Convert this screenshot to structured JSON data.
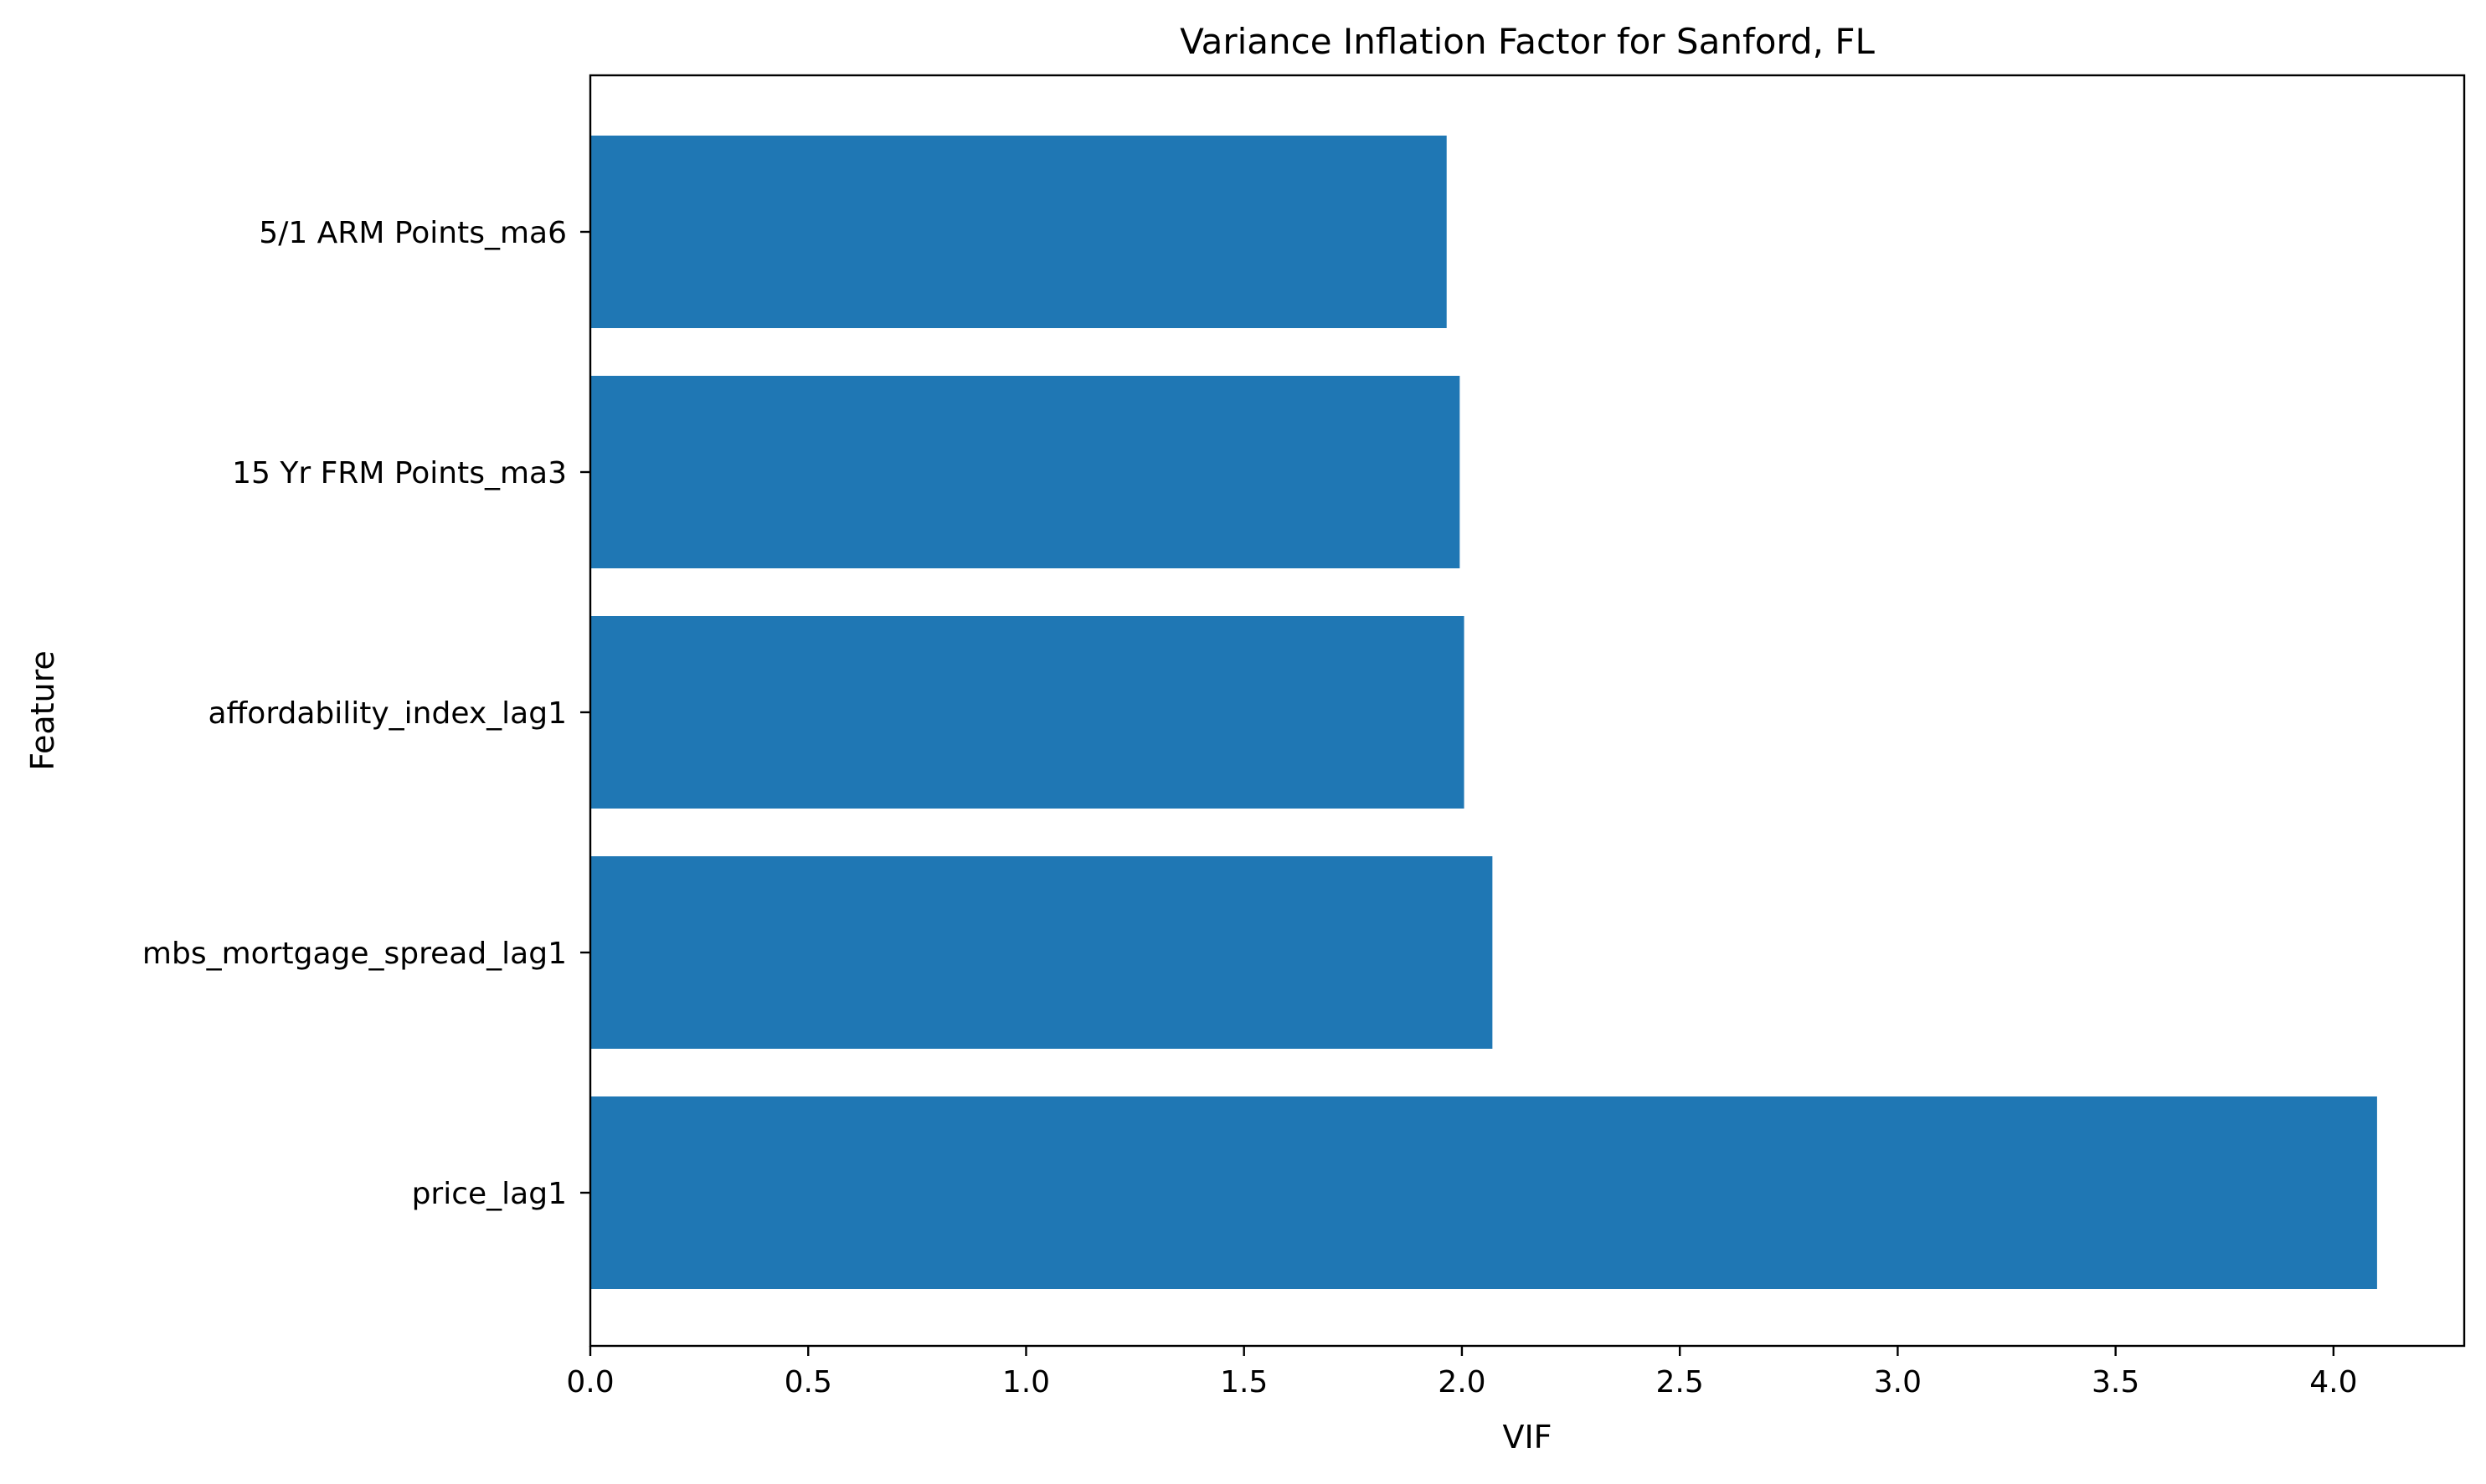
{
  "chart_data": {
    "type": "bar",
    "orientation": "horizontal",
    "title": "Variance Inflation Factor for Sanford, FL",
    "xlabel": "VIF",
    "ylabel": "Feature",
    "categories": [
      "price_lag1",
      "mbs_mortgage_spread_lag1",
      "affordability_index_lag1",
      "15 Yr FRM Points_ma3",
      "5/1 ARM Points_ma6"
    ],
    "values": [
      4.1,
      2.07,
      2.005,
      1.995,
      1.965
    ],
    "xlim": [
      0,
      4.3
    ],
    "xticks": [
      "0.0",
      "0.5",
      "1.0",
      "1.5",
      "2.0",
      "2.5",
      "3.0",
      "3.5",
      "4.0"
    ],
    "bar_color": "#1f77b4",
    "grid": false,
    "legend": "none"
  }
}
